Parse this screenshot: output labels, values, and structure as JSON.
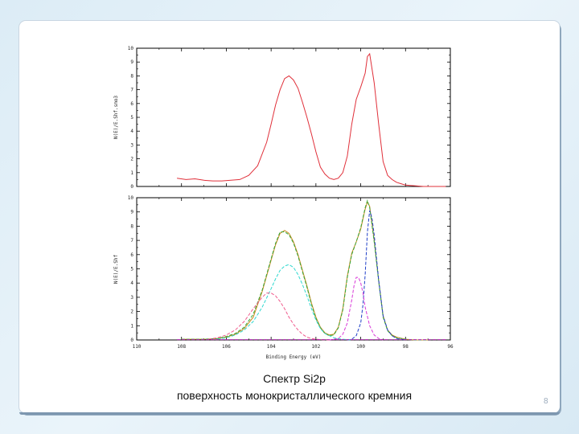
{
  "caption": {
    "line1": "Спектр Si2p",
    "line2": "поверхность монокристаллического кремния"
  },
  "page_number": "8",
  "chart_data": [
    {
      "type": "line",
      "ylabel": "N(E)/E.Shf.smo3",
      "xlabel": "",
      "ylim": [
        0,
        10
      ],
      "xlim": [
        110,
        96
      ],
      "y_ticks": [
        "0",
        "1",
        "2",
        "3",
        "4",
        "5",
        "6",
        "7",
        "8",
        "9",
        "10"
      ],
      "series": [
        {
          "color": "#e0303a",
          "x": [
            108.2,
            107.8,
            107.4,
            107.0,
            106.6,
            106.2,
            105.8,
            105.4,
            105.0,
            104.6,
            104.2,
            104.0,
            103.8,
            103.6,
            103.4,
            103.2,
            103.0,
            102.8,
            102.6,
            102.4,
            102.2,
            102.0,
            101.8,
            101.6,
            101.4,
            101.2,
            101.0,
            100.8,
            100.6,
            100.4,
            100.2,
            100.0,
            99.8,
            99.7,
            99.6,
            99.4,
            99.2,
            99.0,
            98.8,
            98.6,
            98.4,
            98.2,
            98.0,
            97.6,
            97.2,
            96.8,
            96.2
          ],
          "y": [
            0.6,
            0.5,
            0.55,
            0.45,
            0.4,
            0.4,
            0.45,
            0.5,
            0.8,
            1.5,
            3.2,
            4.5,
            5.9,
            7.0,
            7.8,
            8.0,
            7.7,
            7.1,
            6.1,
            5.0,
            3.8,
            2.5,
            1.4,
            0.9,
            0.6,
            0.5,
            0.6,
            1.0,
            2.2,
            4.5,
            6.3,
            7.2,
            8.2,
            9.4,
            9.6,
            7.5,
            4.5,
            1.8,
            0.8,
            0.5,
            0.3,
            0.2,
            0.1,
            0.05,
            0.0,
            0.0,
            0.0
          ]
        }
      ]
    },
    {
      "type": "line",
      "ylabel": "N(E)/E.Shf",
      "xlabel": "Binding Energy (eV)",
      "ylim": [
        0,
        10
      ],
      "xlim": [
        110,
        96
      ],
      "x_ticks": [
        "110",
        "108",
        "106",
        "104",
        "102",
        "100",
        "98",
        "96"
      ],
      "y_ticks": [
        "0",
        "1",
        "2",
        "3",
        "4",
        "5",
        "6",
        "7",
        "8",
        "9",
        "10"
      ],
      "series": [
        {
          "color": "#c8891c",
          "x": [
            108,
            107,
            106.4,
            106.0,
            105.6,
            105.2,
            104.8,
            104.4,
            104.0,
            103.8,
            103.6,
            103.4,
            103.2,
            103.0,
            102.8,
            102.6,
            102.4,
            102.2,
            102.0,
            101.8,
            101.6,
            101.4,
            101.2,
            101.0,
            100.8,
            100.6,
            100.4,
            100.2,
            100.0,
            99.8,
            99.7,
            99.6,
            99.4,
            99.2,
            99.0,
            98.8,
            98.6,
            98.4,
            98.0,
            97.6,
            97.0
          ],
          "y": [
            0.05,
            0.05,
            0.1,
            0.2,
            0.4,
            0.8,
            1.6,
            3.4,
            5.6,
            6.7,
            7.5,
            7.7,
            7.5,
            6.9,
            6.0,
            4.9,
            3.8,
            2.6,
            1.6,
            0.9,
            0.5,
            0.35,
            0.4,
            0.9,
            2.2,
            4.5,
            6.1,
            6.9,
            7.8,
            9.2,
            9.7,
            9.4,
            7.0,
            4.2,
            1.7,
            0.7,
            0.35,
            0.2,
            0.05,
            0.0,
            0.0
          ]
        },
        {
          "color": "#38a83a",
          "x": [
            108,
            107,
            106.4,
            106.0,
            105.6,
            105.2,
            104.8,
            104.4,
            104.0,
            103.8,
            103.6,
            103.4,
            103.2,
            103.0,
            102.8,
            102.6,
            102.4,
            102.2,
            102.0,
            101.8,
            101.6,
            101.4,
            101.2,
            101.0,
            100.8,
            100.6,
            100.4,
            100.2,
            100.0,
            99.8,
            99.7,
            99.6,
            99.4,
            99.2,
            99.0,
            98.8,
            98.6,
            98.4,
            98.0,
            97.6,
            97.0
          ],
          "y": [
            0.05,
            0.05,
            0.1,
            0.25,
            0.45,
            0.9,
            1.8,
            3.5,
            5.7,
            6.8,
            7.6,
            7.6,
            7.4,
            6.8,
            5.9,
            4.8,
            3.7,
            2.5,
            1.5,
            0.85,
            0.45,
            0.3,
            0.35,
            0.85,
            2.1,
            4.4,
            6.0,
            6.9,
            7.9,
            9.3,
            9.8,
            9.3,
            6.9,
            4.1,
            1.6,
            0.65,
            0.3,
            0.15,
            0.05,
            0.0,
            0.0
          ]
        },
        {
          "color": "#1f3fc8",
          "x": [
            100.6,
            100.4,
            100.2,
            100.0,
            99.9,
            99.8,
            99.7,
            99.6,
            99.5,
            99.4,
            99.2,
            99.0,
            98.8,
            98.6,
            98.4,
            98.0
          ],
          "y": [
            0.0,
            0.05,
            0.3,
            1.2,
            2.5,
            4.6,
            7.6,
            9.1,
            8.6,
            7.4,
            4.2,
            1.7,
            0.7,
            0.3,
            0.1,
            0.0
          ]
        },
        {
          "color": "#30d8d0",
          "x": [
            106.4,
            106.0,
            105.6,
            105.2,
            104.8,
            104.4,
            104.0,
            103.8,
            103.6,
            103.4,
            103.2,
            103.0,
            102.8,
            102.6,
            102.4,
            102.2,
            102.0,
            101.8,
            101.6,
            101.2,
            100.8,
            100.4
          ],
          "y": [
            0.05,
            0.15,
            0.35,
            0.7,
            1.3,
            2.3,
            3.6,
            4.3,
            4.9,
            5.2,
            5.3,
            5.1,
            4.6,
            3.9,
            3.1,
            2.2,
            1.4,
            0.8,
            0.45,
            0.15,
            0.05,
            0.0
          ]
        },
        {
          "color": "#f05a8c",
          "x": [
            106.8,
            106.4,
            106.0,
            105.6,
            105.2,
            104.8,
            104.4,
            104.2,
            104.0,
            103.8,
            103.6,
            103.4,
            103.2,
            103.0,
            102.8,
            102.6,
            102.4,
            102.2,
            102.0,
            101.8,
            101.4
          ],
          "y": [
            0.05,
            0.15,
            0.35,
            0.7,
            1.3,
            2.2,
            3.0,
            3.3,
            3.3,
            3.1,
            2.7,
            2.2,
            1.6,
            1.1,
            0.7,
            0.4,
            0.2,
            0.1,
            0.05,
            0.02,
            0.0
          ]
        },
        {
          "color": "#d838d8",
          "x": [
            101.4,
            101.0,
            100.8,
            100.6,
            100.4,
            100.3,
            100.2,
            100.1,
            100.0,
            99.9,
            99.8,
            99.6,
            99.4,
            99.2,
            99.0
          ],
          "y": [
            0.0,
            0.1,
            0.4,
            1.2,
            2.8,
            3.8,
            4.4,
            4.4,
            4.0,
            3.3,
            2.3,
            1.0,
            0.35,
            0.1,
            0.0
          ]
        },
        {
          "color": "#b020b0",
          "x": [
            108.2,
            96.2
          ],
          "y": [
            0.02,
            0.02
          ]
        }
      ]
    }
  ]
}
